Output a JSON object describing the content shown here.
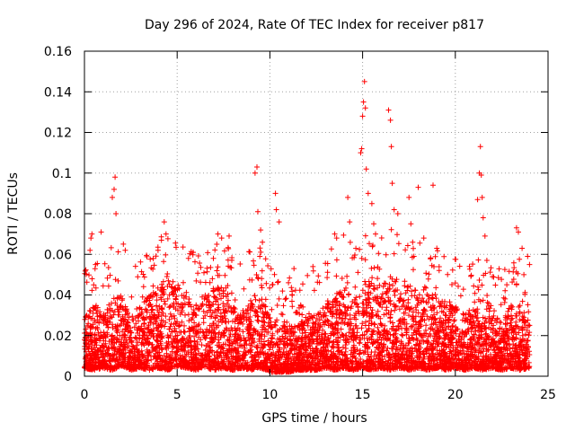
{
  "chart_data": {
    "type": "scatter",
    "title": "Day 296 of 2024, Rate Of TEC Index for receiver p817",
    "xlabel": "GPS time / hours",
    "ylabel": "ROTI / TECUs",
    "xlim": [
      0,
      25
    ],
    "ylim": [
      0,
      0.16
    ],
    "xticks": [
      0,
      5,
      10,
      15,
      20,
      25
    ],
    "xtick_labels": [
      "0",
      "5",
      "10",
      "15",
      "20",
      "25"
    ],
    "yticks": [
      0,
      0.02,
      0.04,
      0.06,
      0.08,
      0.1,
      0.12,
      0.14,
      0.16
    ],
    "ytick_labels": [
      "0",
      "0.02",
      "0.04",
      "0.06",
      "0.08",
      "0.1",
      "0.12",
      "0.14",
      "0.16"
    ],
    "grid": true,
    "marker": "+",
    "color": "#ff0000",
    "series": [
      {
        "name": "ROTI",
        "baseline_envelope": {
          "x": [
            0,
            0.5,
            1,
            1.5,
            2,
            2.5,
            3,
            3.5,
            4,
            4.5,
            5,
            5.5,
            6,
            6.5,
            7,
            7.5,
            8,
            8.5,
            9,
            9.5,
            10,
            10.5,
            11,
            11.5,
            12,
            12.5,
            13,
            13.5,
            14,
            14.5,
            15,
            15.5,
            16,
            16.5,
            17,
            17.5,
            18,
            18.5,
            19,
            19.5,
            20,
            20.5,
            21,
            21.5,
            22,
            22.5,
            23,
            23.5,
            24
          ],
          "upper": [
            0.03,
            0.035,
            0.03,
            0.04,
            0.04,
            0.03,
            0.035,
            0.04,
            0.045,
            0.05,
            0.045,
            0.04,
            0.035,
            0.04,
            0.045,
            0.045,
            0.035,
            0.03,
            0.04,
            0.04,
            0.03,
            0.025,
            0.025,
            0.025,
            0.03,
            0.03,
            0.035,
            0.04,
            0.045,
            0.04,
            0.045,
            0.05,
            0.045,
            0.05,
            0.045,
            0.045,
            0.04,
            0.045,
            0.04,
            0.035,
            0.035,
            0.03,
            0.035,
            0.03,
            0.03,
            0.03,
            0.03,
            0.035,
            0.03
          ],
          "lower": [
            0.004,
            0.003,
            0.004,
            0.003,
            0.005,
            0.003,
            0.004,
            0.003,
            0.004,
            0.003,
            0.005,
            0.004,
            0.003,
            0.004,
            0.003,
            0.004,
            0.003,
            0.004,
            0.003,
            0.004,
            0.002,
            0.002,
            0.002,
            0.003,
            0.003,
            0.003,
            0.004,
            0.003,
            0.004,
            0.003,
            0.004,
            0.003,
            0.004,
            0.003,
            0.004,
            0.003,
            0.004,
            0.003,
            0.004,
            0.003,
            0.004,
            0.003,
            0.004,
            0.003,
            0.004,
            0.003,
            0.004,
            0.003,
            0.004
          ]
        },
        "outliers": {
          "x": [
            0.3,
            0.35,
            0.4,
            0.6,
            0.9,
            1.5,
            1.6,
            1.65,
            1.7,
            2.1,
            2.2,
            4.3,
            4.4,
            7.2,
            7.4,
            7.8,
            9.2,
            9.3,
            9.35,
            9.5,
            9.6,
            10.3,
            10.35,
            10.5,
            11.3,
            13.5,
            13.6,
            14.2,
            14.3,
            14.9,
            14.95,
            15.0,
            15.05,
            15.1,
            15.15,
            15.2,
            15.3,
            15.5,
            15.6,
            15.7,
            16.4,
            16.5,
            16.55,
            16.6,
            16.7,
            16.9,
            17.5,
            17.6,
            17.7,
            18.0,
            18.3,
            18.8,
            19.0,
            21.2,
            21.3,
            21.35,
            21.4,
            21.45,
            21.5,
            21.6,
            21.7,
            22.0,
            23.3,
            23.4,
            23.6,
            23.9,
            24.0
          ],
          "y": [
            0.062,
            0.068,
            0.07,
            0.055,
            0.071,
            0.088,
            0.092,
            0.098,
            0.08,
            0.065,
            0.062,
            0.076,
            0.07,
            0.07,
            0.068,
            0.069,
            0.1,
            0.103,
            0.081,
            0.072,
            0.066,
            0.09,
            0.082,
            0.076,
            0.053,
            0.07,
            0.068,
            0.088,
            0.076,
            0.11,
            0.112,
            0.128,
            0.135,
            0.145,
            0.132,
            0.102,
            0.09,
            0.085,
            0.075,
            0.07,
            0.131,
            0.126,
            0.113,
            0.095,
            0.082,
            0.08,
            0.088,
            0.075,
            0.066,
            0.093,
            0.068,
            0.094,
            0.063,
            0.087,
            0.1,
            0.113,
            0.099,
            0.088,
            0.078,
            0.069,
            0.057,
            0.049,
            0.073,
            0.071,
            0.063,
            0.059,
            0.055
          ]
        }
      }
    ]
  }
}
